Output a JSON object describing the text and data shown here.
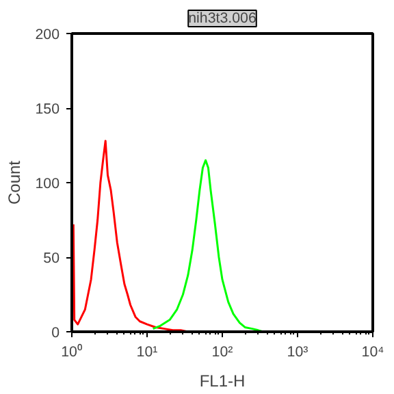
{
  "chart_data": {
    "type": "line",
    "title": "nih3t3.006",
    "xlabel": "FL1-H",
    "ylabel": "Count",
    "log": "x",
    "grid": false,
    "marker": "none",
    "line_style": "solid",
    "xlim": [
      1,
      10000
    ],
    "ylim": [
      0,
      200
    ],
    "xticks": [
      {
        "value": 1,
        "label": "10⁰"
      },
      {
        "value": 10,
        "label": "10¹"
      },
      {
        "value": 100,
        "label": "10²"
      },
      {
        "value": 1000,
        "label": "10³"
      },
      {
        "value": 10000,
        "label": "10⁴"
      }
    ],
    "yticks": [
      0,
      50,
      100,
      150,
      200
    ],
    "series": [
      {
        "color": "#ff0000",
        "x": [
          1.05,
          1.08,
          1.2,
          1.5,
          1.8,
          2.0,
          2.2,
          2.4,
          2.6,
          2.8,
          3.0,
          3.3,
          3.6,
          4.0,
          4.5,
          5.0,
          5.5,
          6,
          7,
          8,
          10,
          13,
          17,
          22,
          28,
          35
        ],
        "values": [
          72,
          8,
          5,
          15,
          35,
          55,
          75,
          100,
          115,
          128,
          105,
          95,
          80,
          60,
          45,
          32,
          25,
          18,
          10,
          7,
          5,
          3,
          2,
          1,
          1,
          0
        ]
      },
      {
        "color": "#00ff00",
        "x": [
          12,
          15,
          20,
          25,
          30,
          35,
          40,
          45,
          50,
          55,
          60,
          65,
          70,
          80,
          90,
          100,
          120,
          140,
          170,
          200,
          250,
          300,
          350
        ],
        "values": [
          2,
          4,
          8,
          15,
          25,
          38,
          55,
          75,
          95,
          110,
          115,
          110,
          95,
          72,
          50,
          35,
          20,
          12,
          6,
          3,
          2,
          1,
          0
        ]
      }
    ]
  }
}
